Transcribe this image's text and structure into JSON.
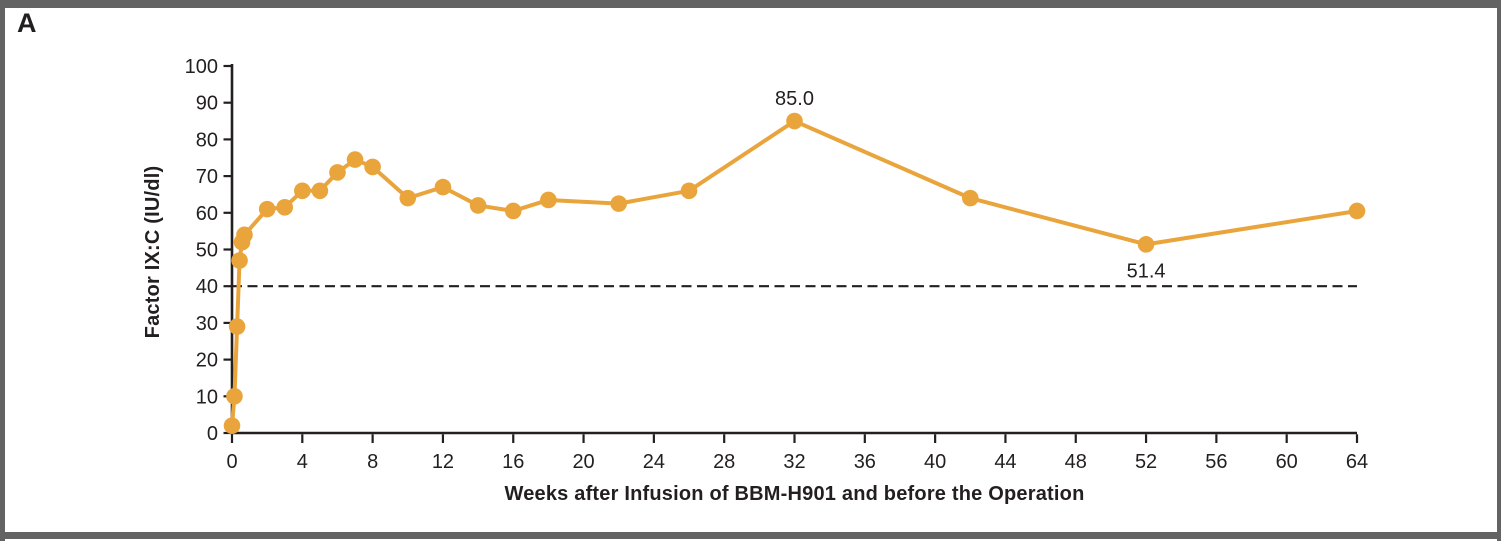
{
  "panel_label": "A",
  "colors": {
    "series": "#E9A53C",
    "axis": "#231F20",
    "text": "#231F20",
    "frame": "#636363",
    "background": "#FFFFFF"
  },
  "chart_data": {
    "type": "line",
    "title": "",
    "xlabel": "Weeks after Infusion of BBM-H901 and before the Operation",
    "ylabel": "Factor IX:C (IU/dl)",
    "xlim": [
      0,
      64
    ],
    "ylim": [
      0,
      100
    ],
    "x_ticks": [
      0,
      4,
      8,
      12,
      16,
      20,
      24,
      28,
      32,
      36,
      40,
      44,
      48,
      52,
      56,
      60,
      64
    ],
    "y_ticks": [
      0,
      10,
      20,
      30,
      40,
      50,
      60,
      70,
      80,
      90,
      100
    ],
    "grid": false,
    "legend_position": "none",
    "reference_line": {
      "y": 40,
      "style": "dashed",
      "label": ""
    },
    "series": [
      {
        "name": "Factor IX:C",
        "x": [
          0,
          0.14,
          0.29,
          0.43,
          0.57,
          0.71,
          2,
          3,
          4,
          5,
          6,
          7,
          8,
          10,
          12,
          14,
          16,
          18,
          22,
          26,
          32,
          42,
          52,
          64
        ],
        "values": [
          2,
          10,
          29,
          47,
          52,
          54,
          61,
          61.5,
          66,
          66,
          71,
          74.5,
          72.5,
          64,
          67,
          62,
          60.5,
          63.5,
          62.5,
          66,
          85.0,
          64,
          51.4,
          60.5
        ]
      }
    ],
    "annotations": [
      {
        "text": "85.0",
        "x": 32,
        "y": 85.0,
        "position": "above"
      },
      {
        "text": "51.4",
        "x": 52,
        "y": 51.4,
        "position": "below"
      }
    ]
  }
}
